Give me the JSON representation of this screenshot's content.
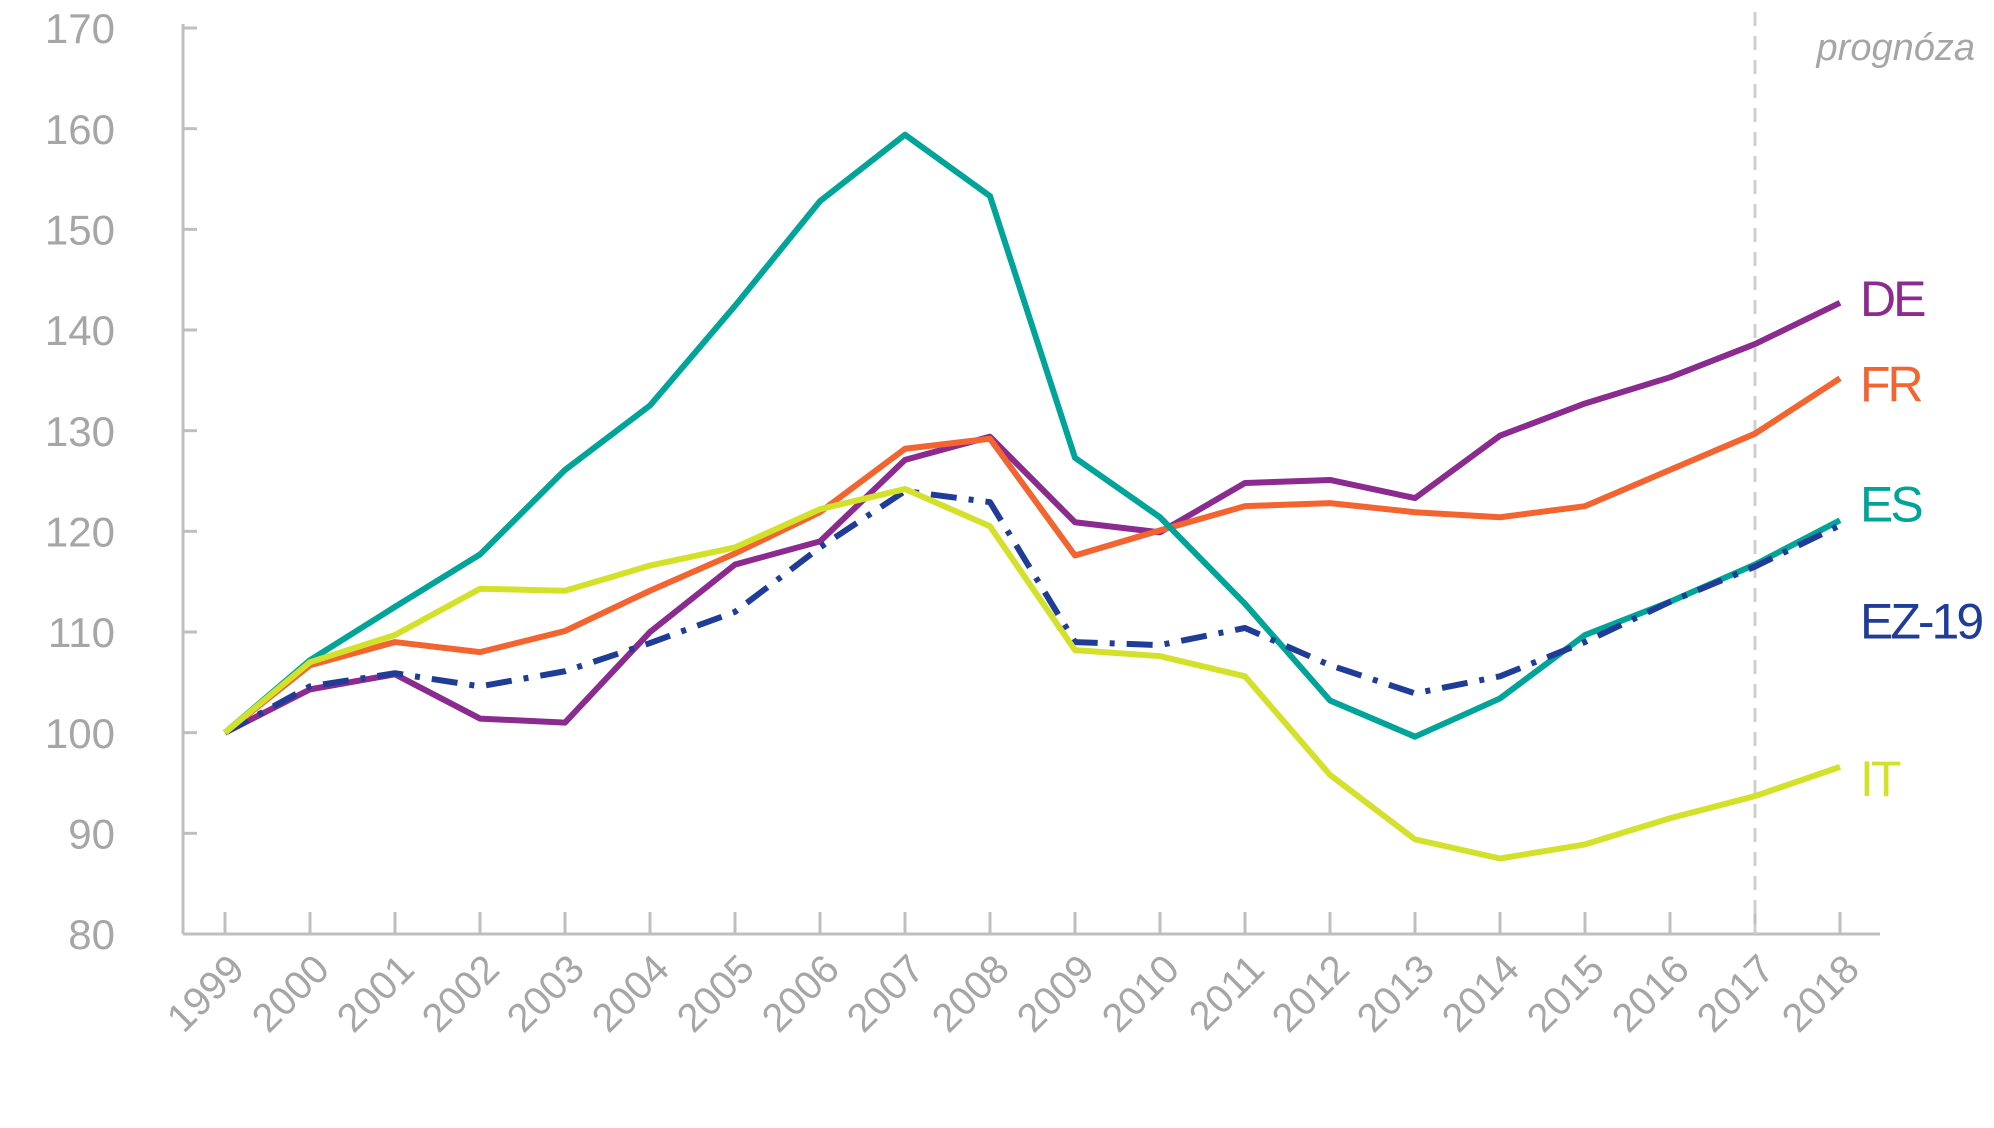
{
  "chart_data": {
    "type": "line",
    "categories": [
      "1999",
      "2000",
      "2001",
      "2002",
      "2003",
      "2004",
      "2005",
      "2006",
      "2007",
      "2008",
      "2009",
      "2010",
      "2011",
      "2012",
      "2013",
      "2014",
      "2015",
      "2016",
      "2017",
      "2018"
    ],
    "series": [
      {
        "name": "DE",
        "color": "#8b2a8f",
        "values": [
          100,
          104.3,
          105.8,
          101.4,
          101.0,
          110.0,
          116.7,
          119.0,
          127.1,
          129.4,
          120.9,
          119.9,
          124.8,
          125.1,
          123.3,
          129.5,
          132.7,
          135.3,
          138.6,
          142.7
        ]
      },
      {
        "name": "FR",
        "color": "#f26430",
        "values": [
          100,
          106.7,
          109.0,
          108.0,
          110.1,
          114.1,
          117.8,
          121.9,
          128.2,
          129.2,
          117.6,
          120.1,
          122.5,
          122.8,
          121.9,
          121.4,
          122.5,
          126.1,
          129.7,
          135.2
        ]
      },
      {
        "name": "ES",
        "color": "#00a499",
        "values": [
          100,
          107.2,
          112.5,
          117.7,
          126.1,
          132.5,
          142.4,
          152.8,
          159.4,
          153.3,
          127.3,
          121.4,
          112.8,
          103.2,
          99.6,
          103.4,
          109.7,
          113.0,
          116.7,
          121.1
        ]
      },
      {
        "name": "EZ-19",
        "color": "#1f3c96",
        "dashed": true,
        "values": [
          100,
          104.6,
          105.9,
          104.6,
          106.1,
          108.9,
          112.0,
          118.4,
          124.0,
          122.9,
          109.0,
          108.7,
          110.4,
          106.7,
          103.9,
          105.6,
          109.0,
          113.0,
          116.5,
          120.6
        ]
      },
      {
        "name": "IT",
        "color": "#d4e12a",
        "values": [
          100,
          107.0,
          109.7,
          114.3,
          114.1,
          116.6,
          118.4,
          122.2,
          124.2,
          120.5,
          108.2,
          107.6,
          105.6,
          95.8,
          89.4,
          87.5,
          88.9,
          91.5,
          93.7,
          96.6
        ]
      }
    ],
    "ylim": [
      80,
      170
    ],
    "yticks": [
      80,
      90,
      100,
      110,
      120,
      130,
      140,
      150,
      160,
      170
    ],
    "forecast_start": "2017",
    "forecast_label": "prognóza"
  }
}
